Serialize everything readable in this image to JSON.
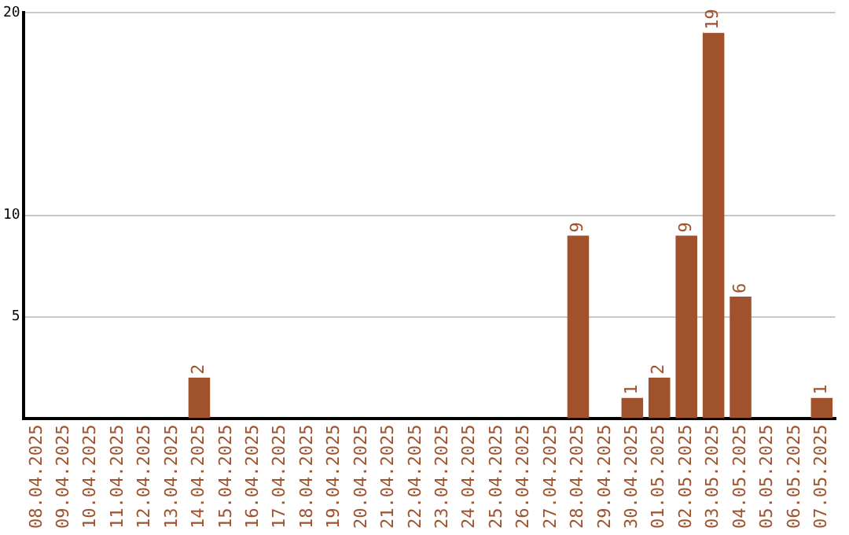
{
  "chart_data": {
    "type": "bar",
    "categories": [
      "08.04.2025",
      "09.04.2025",
      "10.04.2025",
      "11.04.2025",
      "12.04.2025",
      "13.04.2025",
      "14.04.2025",
      "15.04.2025",
      "16.04.2025",
      "17.04.2025",
      "18.04.2025",
      "19.04.2025",
      "20.04.2025",
      "21.04.2025",
      "22.04.2025",
      "23.04.2025",
      "24.04.2025",
      "25.04.2025",
      "26.04.2025",
      "27.04.2025",
      "28.04.2025",
      "29.04.2025",
      "30.04.2025",
      "01.05.2025",
      "02.05.2025",
      "03.05.2025",
      "04.05.2025",
      "05.05.2025",
      "06.05.2025",
      "07.05.2025"
    ],
    "values": [
      0,
      0,
      0,
      0,
      0,
      0,
      2,
      0,
      0,
      0,
      0,
      0,
      0,
      0,
      0,
      0,
      0,
      0,
      0,
      0,
      9,
      0,
      1,
      2,
      9,
      19,
      6,
      0,
      0,
      1
    ],
    "value_labels": [
      null,
      null,
      null,
      null,
      null,
      null,
      "2",
      null,
      null,
      null,
      null,
      null,
      null,
      null,
      null,
      null,
      null,
      null,
      null,
      null,
      "9",
      null,
      "1",
      "2",
      "9",
      "19",
      "6",
      null,
      null,
      "1"
    ],
    "color": "#a0522d",
    "ylim": [
      0,
      20
    ],
    "yticks": [
      5,
      10,
      20
    ],
    "grid": "y",
    "legend": false
  }
}
